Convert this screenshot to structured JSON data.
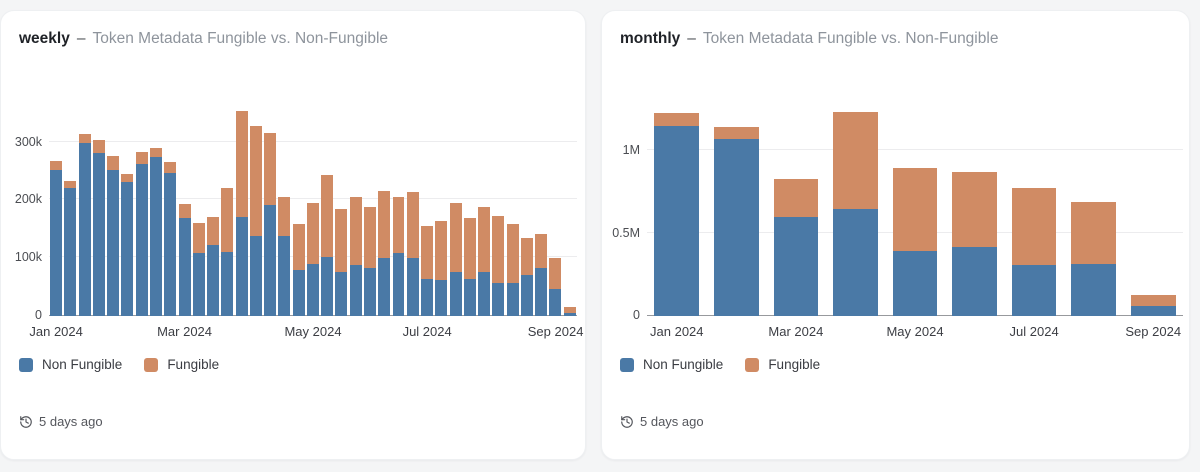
{
  "page_background": "#f4f5f6",
  "colors": {
    "non_fungible": "#4A79A6",
    "fungible": "#D08B64"
  },
  "panels": [
    {
      "title_prefix": "weekly",
      "title_separator": "–",
      "title_rest": "Token Metadata Fungible vs. Non-Fungible",
      "legend": [
        {
          "label": "Non Fungible",
          "color": "#4A79A6"
        },
        {
          "label": "Fungible",
          "color": "#D08B64"
        }
      ],
      "last_updated": "5 days ago"
    },
    {
      "title_prefix": "monthly",
      "title_separator": "–",
      "title_rest": "Token Metadata Fungible vs. Non-Fungible",
      "legend": [
        {
          "label": "Non Fungible",
          "color": "#4A79A6"
        },
        {
          "label": "Fungible",
          "color": "#D08B64"
        }
      ],
      "last_updated": "5 days ago"
    }
  ],
  "chart_data": [
    {
      "type": "bar",
      "stacked": true,
      "interval": "weekly",
      "title": "weekly – Token Metadata Fungible vs. Non-Fungible",
      "grid": "horizontal",
      "legend_position": "bottom",
      "ylim": [
        0,
        370000
      ],
      "y_ticks": [
        {
          "value": 0,
          "label": "0"
        },
        {
          "value": 100000,
          "label": "100k"
        },
        {
          "value": 200000,
          "label": "200k"
        },
        {
          "value": 300000,
          "label": "300k"
        }
      ],
      "x_ticks": [
        {
          "label": "Jan 2024",
          "index": 0
        },
        {
          "label": "Mar 2024",
          "index": 9
        },
        {
          "label": "May 2024",
          "index": 18
        },
        {
          "label": "Jul 2024",
          "index": 26
        },
        {
          "label": "Sep 2024",
          "index": 35
        }
      ],
      "series": [
        {
          "name": "Non Fungible",
          "color": "#4A79A6",
          "values": [
            252000,
            220000,
            297000,
            280000,
            252000,
            230000,
            262000,
            273000,
            246000,
            168000,
            108000,
            122000,
            110000,
            170000,
            137000,
            191000,
            137000,
            79000,
            90000,
            102000,
            75000,
            88000,
            82000,
            100000,
            108000,
            100000,
            64000,
            62000,
            76000,
            64000,
            75000,
            56000,
            56000,
            70000,
            83000,
            46000,
            5000
          ]
        },
        {
          "name": "Fungible",
          "color": "#D08B64",
          "values": [
            14000,
            13000,
            17000,
            23000,
            24000,
            15000,
            20000,
            16000,
            19000,
            24000,
            52000,
            48000,
            110000,
            182000,
            190000,
            124000,
            68000,
            79000,
            105000,
            140000,
            110000,
            116000,
            105000,
            115000,
            97000,
            114000,
            91000,
            102000,
            119000,
            104000,
            113000,
            116000,
            102000,
            64000,
            59000,
            54000,
            11000
          ]
        }
      ]
    },
    {
      "type": "bar",
      "stacked": true,
      "interval": "monthly",
      "title": "monthly – Token Metadata Fungible vs. Non-Fungible",
      "grid": "horizontal",
      "legend_position": "bottom",
      "ylim": [
        0,
        1300000
      ],
      "y_ticks": [
        {
          "value": 0,
          "label": "0"
        },
        {
          "value": 500000,
          "label": "0.5M"
        },
        {
          "value": 1000000,
          "label": "1M"
        }
      ],
      "x_ticks": [
        {
          "label": "Jan 2024",
          "index": 0
        },
        {
          "label": "Mar 2024",
          "index": 2
        },
        {
          "label": "May 2024",
          "index": 4
        },
        {
          "label": "Jul 2024",
          "index": 6
        },
        {
          "label": "Sep 2024",
          "index": 8
        }
      ],
      "series": [
        {
          "name": "Non Fungible",
          "color": "#4A79A6",
          "values": [
            1150000,
            1070000,
            600000,
            650000,
            395000,
            415000,
            307000,
            312000,
            60000
          ]
        },
        {
          "name": "Fungible",
          "color": "#D08B64",
          "values": [
            80000,
            75000,
            230000,
            585000,
            500000,
            455000,
            470000,
            380000,
            65000
          ]
        }
      ]
    }
  ]
}
